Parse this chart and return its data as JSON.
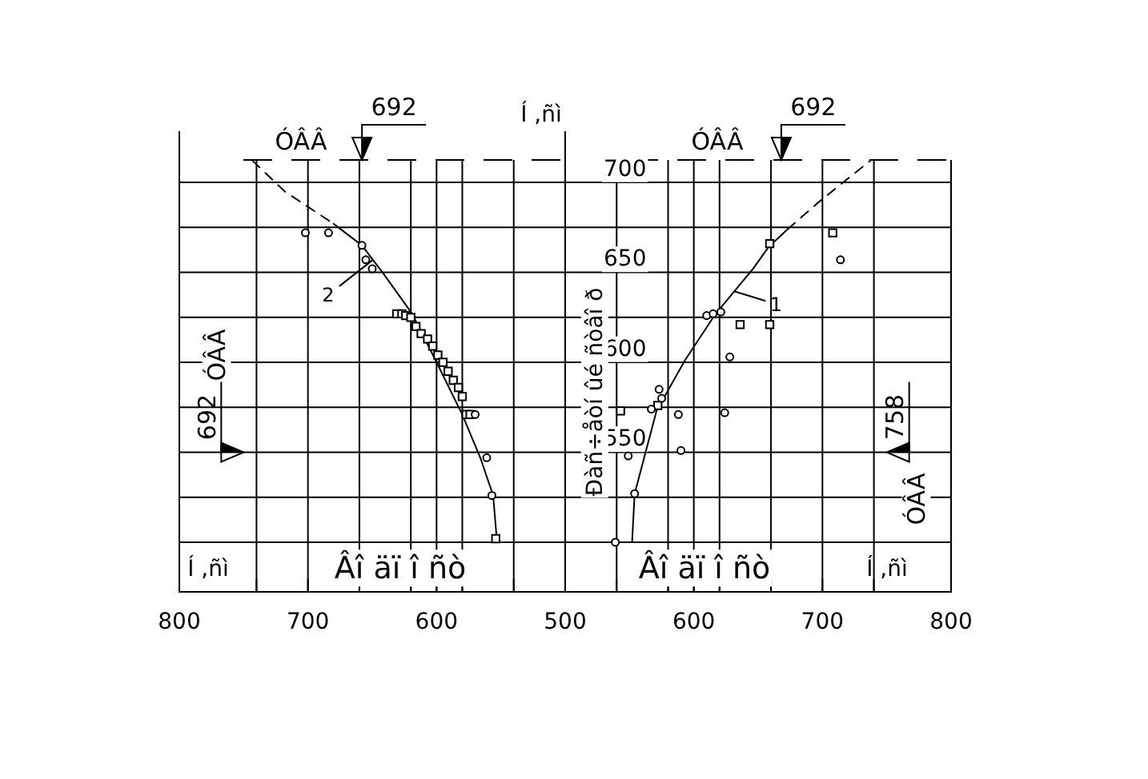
{
  "chart_data": [
    {
      "type": "line",
      "xlim": [
        800,
        500
      ],
      "ylim": [
        500,
        712.5
      ],
      "xticks": [
        800,
        {
          "value": 740,
          "label": null
        },
        700,
        {
          "value": 660,
          "label": null
        },
        {
          "value": 620,
          "label": null
        },
        600,
        {
          "value": 580,
          "label": null
        },
        {
          "value": 540,
          "label": null
        }
      ],
      "yticks": [
        {
          "value": 500,
          "label": null
        },
        {
          "value": 525,
          "label": null
        },
        550,
        {
          "value": 575,
          "label": null
        },
        600,
        {
          "value": 625,
          "label": null
        },
        650,
        {
          "value": 675,
          "label": null
        },
        700
      ],
      "grid": true,
      "tick_labels": "x",
      "xlabel": "Í ,ñì",
      "annotations": [
        "ÓÂÂ",
        "692",
        "ÓÂÂ",
        "692",
        "Âî äï î ñò"
      ],
      "series": [
        {
          "type": "line",
          "color": "#000000",
          "line_style": "dashed",
          "marker": "none",
          "x": [
            743,
            718,
            680
          ],
          "values": [
            712,
            695,
            677
          ]
        },
        {
          "type": "line",
          "name": "2",
          "color": "#000000",
          "line_style": "solid",
          "marker": "none",
          "x": [
            680,
            658,
            641,
            619,
            600,
            580,
            566,
            556,
            553
          ],
          "values": [
            677,
            665,
            649,
            627,
            600,
            571,
            547,
            526,
            500
          ]
        },
        {
          "type": "scatter",
          "color": "#000000",
          "marker": "square",
          "x": [
            631,
            627,
            624,
            620,
            616,
            612,
            607,
            603,
            599,
            595,
            591,
            587,
            583,
            580,
            577,
            574,
            554
          ],
          "values": [
            627,
            627,
            626,
            625,
            620,
            616,
            613,
            609,
            604,
            600,
            595,
            590,
            586,
            581,
            571,
            571,
            502
          ]
        },
        {
          "type": "scatter",
          "color": "#000000",
          "marker": "circle",
          "x": [
            702,
            684,
            658,
            655,
            650,
            570,
            561,
            557
          ],
          "values": [
            672,
            672,
            665,
            657,
            652,
            571,
            547,
            526
          ]
        }
      ]
    },
    {
      "type": "line",
      "xlim": [
        500,
        800
      ],
      "ylim": [
        500,
        712.5
      ],
      "xticks": [
        500,
        {
          "value": 540,
          "label": null
        },
        {
          "value": 580,
          "label": null
        },
        600,
        {
          "value": 620,
          "label": null
        },
        {
          "value": 660,
          "label": null
        },
        700,
        {
          "value": 740,
          "label": null
        },
        800
      ],
      "yticks": [
        {
          "value": 500,
          "label": null
        },
        {
          "value": 525,
          "label": null
        },
        550,
        {
          "value": 575,
          "label": null
        },
        600,
        {
          "value": 625,
          "label": null
        },
        650,
        {
          "value": 675,
          "label": null
        },
        700
      ],
      "grid": true,
      "xlabel": "Í ,ñì",
      "ylabel": "Í ,ñì",
      "annotations": [
        "ÓÂÂ",
        "692",
        "ÓÂÂ",
        "758",
        "Âî äï î ñò",
        "Ðàñ÷åòí ûé ñòâî ð"
      ],
      "series": [
        {
          "type": "line",
          "name": "1",
          "color": "#000000",
          "line_style": "solid",
          "marker": "none",
          "x": [
            552,
            554,
            571,
            593,
            617,
            646,
            658,
            673
          ],
          "values": [
            500,
            527,
            573,
            601,
            627,
            652,
            664,
            674
          ]
        },
        {
          "type": "line",
          "color": "#000000",
          "line_style": "dashed",
          "marker": "none",
          "x": [
            673,
            697,
            737
          ],
          "values": [
            674,
            689,
            712
          ]
        },
        {
          "type": "scatter",
          "color": "#000000",
          "marker": "square",
          "x": [
            543,
            708,
            659,
            636,
            659,
            572
          ],
          "values": [
            573,
            672,
            666,
            621,
            621,
            576
          ]
        },
        {
          "type": "scatter",
          "color": "#000000",
          "marker": "circle",
          "x": [
            549,
            588,
            590,
            624,
            628,
            714,
            610,
            615,
            621,
            554,
            567,
            573,
            575,
            539
          ],
          "values": [
            548,
            571,
            551,
            572,
            603,
            657,
            626,
            627,
            628,
            527,
            574,
            585,
            580,
            500
          ]
        }
      ]
    }
  ]
}
